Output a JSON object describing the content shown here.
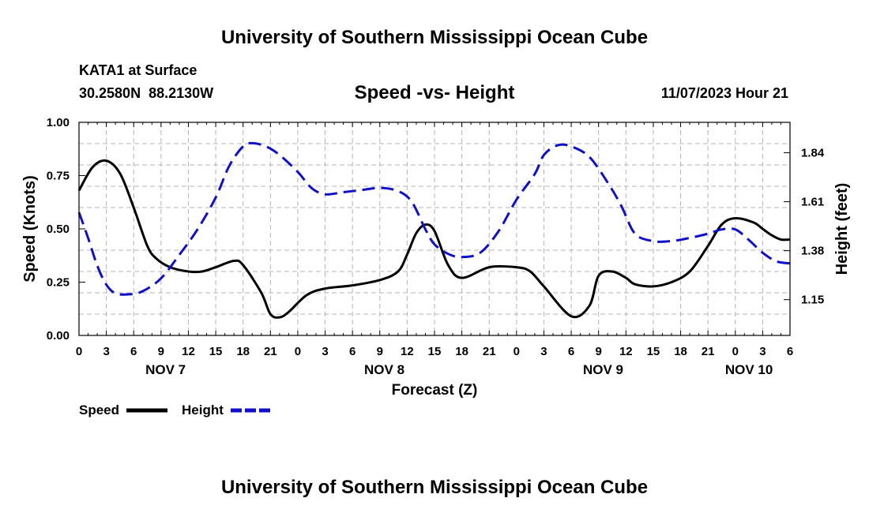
{
  "chart_data": {
    "type": "line",
    "title": "University of Southern Mississippi Ocean Cube",
    "footer_title": "University of Southern Mississippi Ocean Cube",
    "subtitle": "Speed -vs- Height",
    "station": "KATA1 at Surface",
    "coords": "30.2580N  88.2130W",
    "datetime": "11/07/2023 Hour 21",
    "xlabel": "Forecast (Z)",
    "ylabel_left": "Speed (Knots)",
    "ylabel_right": "Height (feet)",
    "x_range": [
      0,
      78
    ],
    "y_left_range": [
      0,
      1.0
    ],
    "y_right_range": [
      0.982,
      1.983
    ],
    "x_tick_labels": [
      "0",
      "3",
      "6",
      "9",
      "12",
      "15",
      "18",
      "21",
      "0",
      "3",
      "6",
      "9",
      "12",
      "15",
      "18",
      "21",
      "0",
      "3",
      "6",
      "9",
      "12",
      "15",
      "18",
      "21",
      "0",
      "3",
      "6"
    ],
    "day_labels": [
      {
        "label": "NOV 7",
        "x": 9.5
      },
      {
        "label": "NOV 8",
        "x": 33.5
      },
      {
        "label": "NOV 9",
        "x": 57.5
      },
      {
        "label": "NOV 10",
        "x": 73.5
      }
    ],
    "y_left_ticks": [
      "0.00",
      "0.25",
      "0.50",
      "0.75",
      "1.00"
    ],
    "y_right_ticks": [
      {
        "label": "1.15",
        "value": 1.15
      },
      {
        "label": "1.38",
        "value": 1.38
      },
      {
        "label": "1.61",
        "value": 1.61
      },
      {
        "label": "1.84",
        "value": 1.84
      }
    ],
    "legend": [
      {
        "label": "Speed",
        "color": "#000000",
        "dashed": false
      },
      {
        "label": "Height",
        "color": "#1010c8",
        "dashed": true
      }
    ],
    "series": [
      {
        "name": "Speed",
        "axis": "left",
        "color": "#000000",
        "dashed": false,
        "x": [
          0,
          1.5,
          3,
          4.5,
          6,
          7.5,
          8.5,
          10,
          12,
          13.5,
          15,
          17,
          18,
          20,
          21,
          22,
          23,
          25,
          27,
          30,
          33,
          35,
          36,
          37,
          38,
          39,
          40.5,
          42,
          45,
          48,
          49.5,
          51,
          54,
          56,
          57,
          58.5,
          60,
          61,
          63,
          65,
          67,
          69,
          70.5,
          72,
          74,
          75,
          76,
          77,
          78
        ],
        "y": [
          0.68,
          0.79,
          0.82,
          0.76,
          0.6,
          0.42,
          0.36,
          0.32,
          0.3,
          0.3,
          0.32,
          0.35,
          0.33,
          0.2,
          0.1,
          0.085,
          0.11,
          0.19,
          0.22,
          0.235,
          0.26,
          0.3,
          0.38,
          0.48,
          0.52,
          0.49,
          0.33,
          0.27,
          0.32,
          0.32,
          0.3,
          0.23,
          0.09,
          0.14,
          0.28,
          0.3,
          0.27,
          0.24,
          0.23,
          0.25,
          0.3,
          0.42,
          0.52,
          0.55,
          0.53,
          0.5,
          0.47,
          0.45,
          0.45
        ]
      },
      {
        "name": "Height",
        "axis": "right",
        "color": "#1010c8",
        "dashed": true,
        "x": [
          0,
          1,
          2,
          3,
          4,
          5.5,
          7,
          9,
          11,
          13,
          15,
          16.5,
          18,
          19,
          20.5,
          22,
          24,
          25.5,
          27,
          29,
          31,
          33,
          35,
          36.5,
          38,
          39,
          40.5,
          42,
          44,
          46,
          48,
          50,
          51,
          52.5,
          54,
          56,
          58,
          59.5,
          61,
          63,
          65,
          67,
          69,
          70.5,
          72,
          73.5,
          75,
          76.5,
          78
        ],
        "y": [
          1.56,
          1.44,
          1.31,
          1.22,
          1.18,
          1.175,
          1.19,
          1.25,
          1.36,
          1.48,
          1.63,
          1.78,
          1.87,
          1.885,
          1.87,
          1.83,
          1.75,
          1.675,
          1.645,
          1.655,
          1.665,
          1.675,
          1.66,
          1.61,
          1.48,
          1.41,
          1.365,
          1.35,
          1.37,
          1.47,
          1.62,
          1.74,
          1.83,
          1.875,
          1.87,
          1.82,
          1.7,
          1.59,
          1.46,
          1.425,
          1.425,
          1.44,
          1.46,
          1.48,
          1.48,
          1.43,
          1.37,
          1.33,
          1.32
        ]
      }
    ]
  }
}
